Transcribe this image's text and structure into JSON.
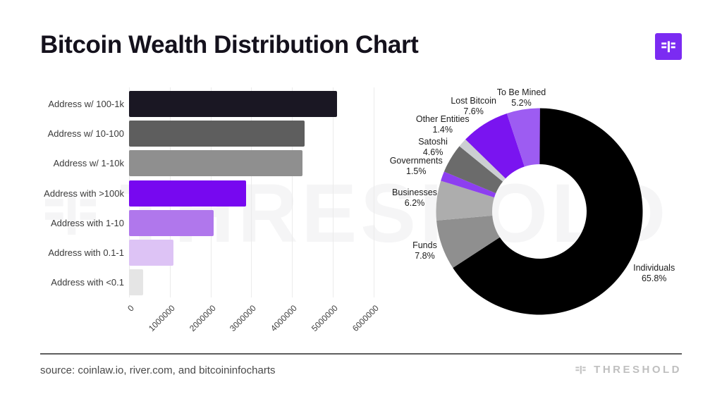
{
  "header": {
    "title": "Bitcoin Wealth Distribution Chart"
  },
  "branding": {
    "logo_icon": "threshold-mark",
    "accent_color": "#7b2bf2",
    "brand_name": "THRESHOLD",
    "watermark_text": "THRESHOLD"
  },
  "footer": {
    "source_text": "source: coinlaw.io, river.com, and bitcoininfocharts"
  },
  "chart_data": [
    {
      "type": "bar",
      "orientation": "horizontal",
      "title": "",
      "xlabel": "",
      "ylabel": "",
      "grid": true,
      "xlim": [
        0,
        6000000
      ],
      "x_ticks": [
        "0",
        "1000000",
        "2000000",
        "3000000",
        "4000000",
        "5000000",
        "6000000"
      ],
      "categories": [
        "Address w/ 100-1k",
        "Address w/ 10-100",
        "Address w/ 1-10k",
        "Address with >100k",
        "Address with 1-10",
        "Address with 0.1-1",
        "Address with <0.1"
      ],
      "values": [
        5100000,
        4300000,
        4250000,
        2870000,
        2070000,
        1090000,
        350000
      ],
      "bar_colors": [
        "#1a1723",
        "#5e5e5e",
        "#8f8f8f",
        "#7708f0",
        "#b077ec",
        "#ddc3f5",
        "#e5e5e5"
      ]
    },
    {
      "type": "pie",
      "donut": true,
      "start_angle_deg": 0,
      "direction": "clockwise",
      "slices": [
        {
          "label": "Individuals",
          "pct": 65.8,
          "color": "#000000"
        },
        {
          "label": "Funds",
          "pct": 7.8,
          "color": "#8f8f8f"
        },
        {
          "label": "Businesses",
          "pct": 6.2,
          "color": "#adadad"
        },
        {
          "label": "Governments",
          "pct": 1.5,
          "color": "#8d3ff0"
        },
        {
          "label": "Satoshi",
          "pct": 4.6,
          "color": "#6b6b6b"
        },
        {
          "label": "Other Entities",
          "pct": 1.4,
          "color": "#cccfd2"
        },
        {
          "label": "Lost Bitcoin",
          "pct": 7.6,
          "color": "#7a14f0"
        },
        {
          "label": "To Be Mined",
          "pct": 5.2,
          "color": "#9d5cf2"
        }
      ]
    }
  ]
}
